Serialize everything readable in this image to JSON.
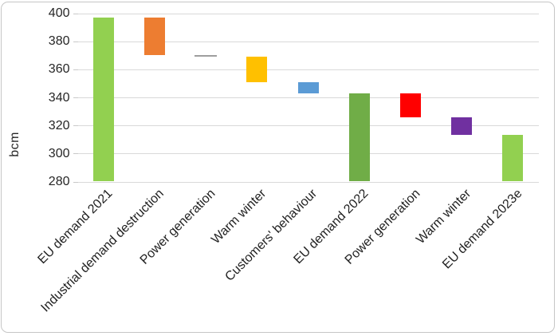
{
  "chart_data": {
    "type": "bar",
    "subtype": "waterfall",
    "title": "",
    "xlabel": "",
    "ylabel": "bcm",
    "ylim": [
      280,
      400
    ],
    "yticks": [
      400,
      380,
      360,
      340,
      320,
      300,
      280
    ],
    "grid": true,
    "legend": "none",
    "categories": [
      "EU demand 2021",
      "Industrial demand destruction",
      "Power generation",
      "Warm winter",
      "Customers' behaviour",
      "EU demand 2022",
      "Power generation",
      "Warm winter",
      "EU demand 2023e"
    ],
    "bars": [
      {
        "label": "EU demand 2021",
        "kind": "total",
        "start": 280,
        "end": 397,
        "color": "#92d050"
      },
      {
        "label": "Industrial demand destruction",
        "kind": "decrease",
        "start": 397,
        "end": 370,
        "color": "#ed7d31"
      },
      {
        "label": "Power generation",
        "kind": "line",
        "start": 370,
        "end": 369,
        "color": "#9e9e9e"
      },
      {
        "label": "Warm winter",
        "kind": "decrease",
        "start": 369,
        "end": 351,
        "color": "#ffc000"
      },
      {
        "label": "Customers' behaviour",
        "kind": "decrease",
        "start": 351,
        "end": 343,
        "color": "#5b9bd5"
      },
      {
        "label": "EU demand 2022",
        "kind": "total",
        "start": 280,
        "end": 343,
        "color": "#70ad47"
      },
      {
        "label": "Power generation",
        "kind": "decrease",
        "start": 343,
        "end": 326,
        "color": "#ff0000"
      },
      {
        "label": "Warm winter",
        "kind": "decrease",
        "start": 326,
        "end": 313,
        "color": "#7030a0"
      },
      {
        "label": "EU demand 2023e",
        "kind": "total",
        "start": 280,
        "end": 313,
        "color": "#92d050"
      }
    ],
    "colors": {
      "gridline": "#d9d9d9",
      "tick": "#c9c9c9",
      "axis_text": "#262626",
      "frame_border": "#c6c6c6",
      "background": "#ffffff"
    }
  }
}
